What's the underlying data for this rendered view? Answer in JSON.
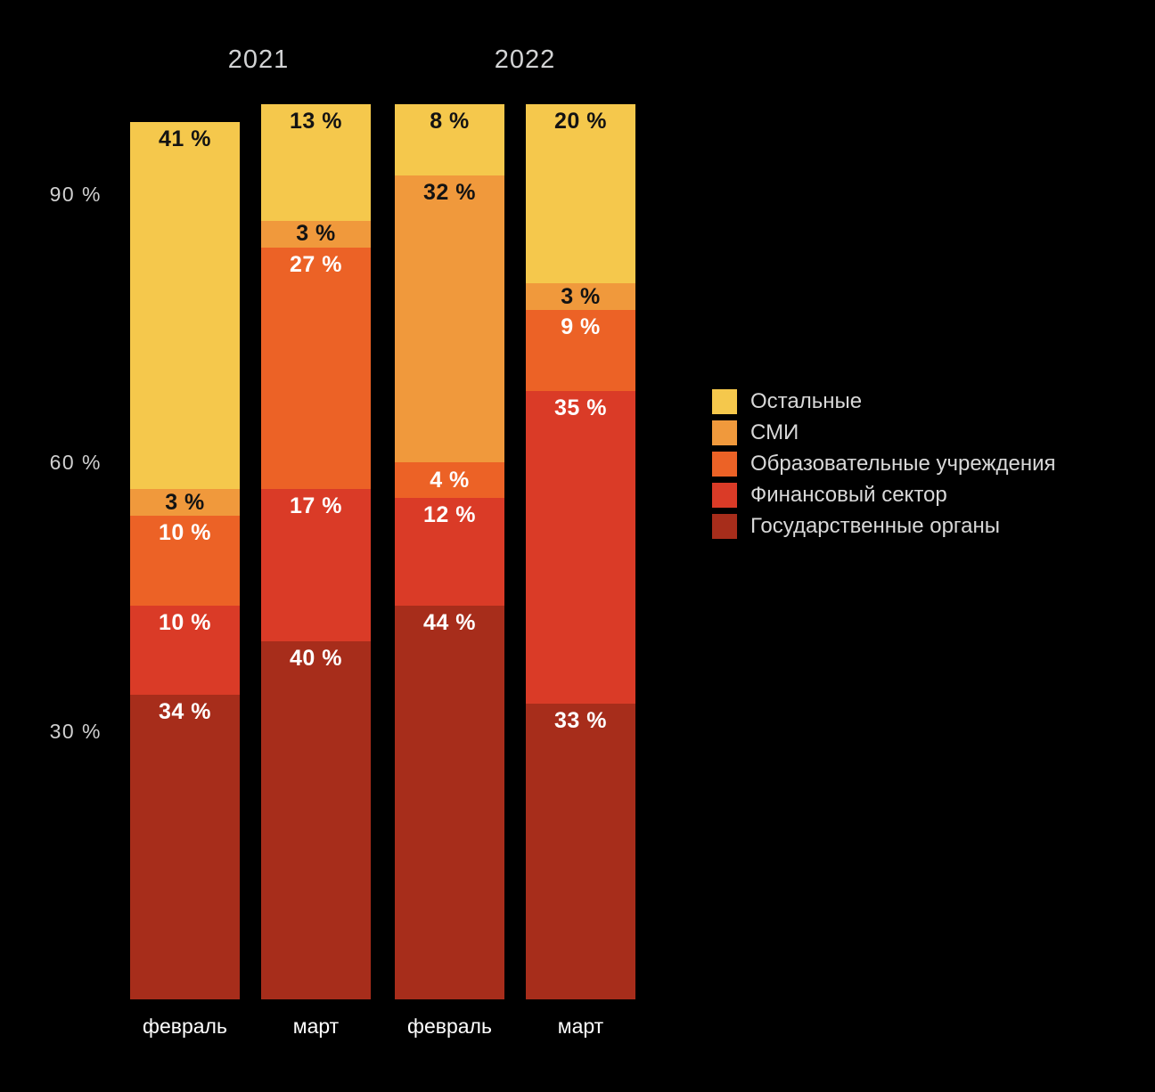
{
  "chart_data": {
    "type": "bar",
    "variant": "stacked-vertical",
    "title": "",
    "background": "#000000",
    "groups": [
      {
        "label": "2021"
      },
      {
        "label": "2022"
      }
    ],
    "categories": [
      {
        "key": "feb-2021",
        "label": "февраль",
        "group": "2021"
      },
      {
        "key": "mar-2021",
        "label": "март",
        "group": "2021"
      },
      {
        "key": "feb-2022",
        "label": "февраль",
        "group": "2022"
      },
      {
        "key": "mar-2022",
        "label": "март",
        "group": "2022"
      }
    ],
    "series_bottom_to_top": [
      {
        "key": "gov",
        "name": "Государственные органы",
        "color": "#A72D1B",
        "label_style": "light",
        "values": [
          34,
          40,
          44,
          33
        ]
      },
      {
        "key": "finance",
        "name": "Финансовый сектор",
        "color": "#DA3B27",
        "label_style": "light",
        "values": [
          10,
          17,
          12,
          35
        ]
      },
      {
        "key": "edu",
        "name": "Образовательные учреждения",
        "color": "#EC6226",
        "label_style": "light",
        "values": [
          10,
          27,
          4,
          9
        ]
      },
      {
        "key": "media",
        "name": "СМИ",
        "color": "#F0993C",
        "label_style": "dark",
        "values": [
          3,
          3,
          32,
          3
        ]
      },
      {
        "key": "other",
        "name": "Остальные",
        "color": "#F5C84C",
        "label_style": "dark",
        "values": [
          41,
          13,
          8,
          20
        ]
      }
    ],
    "bar_totals": [
      98,
      100,
      100,
      100
    ],
    "value_label_format": "{v} %",
    "y_axis": {
      "min": 0,
      "max": 100,
      "grid": false,
      "ticks": [
        {
          "value": 30,
          "label": "30 %"
        },
        {
          "value": 60,
          "label": "60 %"
        },
        {
          "value": 90,
          "label": "90 %"
        }
      ]
    },
    "legend_top_to_bottom": [
      "Остальные",
      "СМИ",
      "Образовательные учреждения",
      "Финансовый сектор",
      "Государственные органы"
    ],
    "legend_position": "right",
    "colors": {
      "label_dark": "#131313",
      "label_light": "#FFFFFF",
      "axis_text": "#D0D0D0",
      "year_text": "#D2D3D4",
      "legend_text": "#D8D8D8",
      "month_text": "#FFFFFF"
    }
  }
}
